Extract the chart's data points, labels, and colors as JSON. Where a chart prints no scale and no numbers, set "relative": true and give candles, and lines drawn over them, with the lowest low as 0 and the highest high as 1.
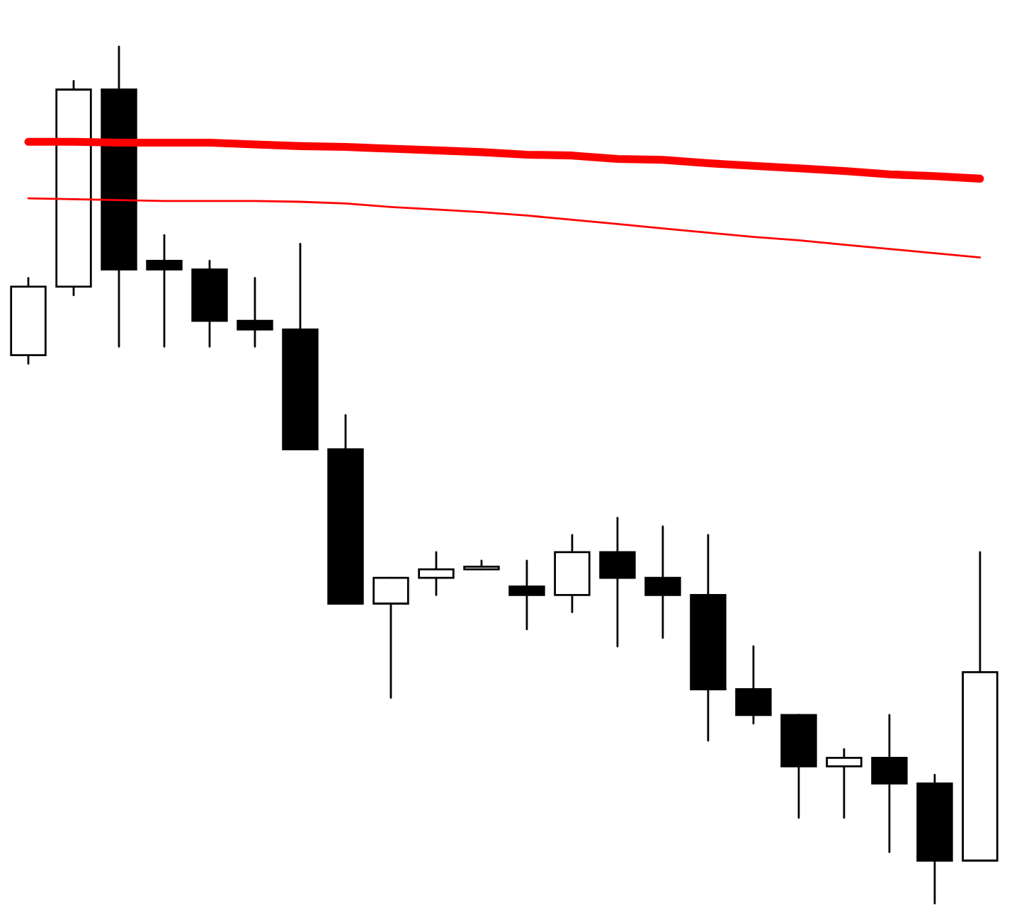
{
  "chart_data": {
    "type": "candlestick",
    "relative": true,
    "categories": [
      null,
      null,
      null,
      null,
      null,
      null,
      null,
      null,
      null,
      null,
      null,
      null,
      null,
      null,
      null,
      null,
      null,
      null,
      null,
      null,
      null,
      null
    ],
    "ohlc": [
      [
        0.64,
        0.73,
        0.63,
        0.72
      ],
      [
        0.72,
        0.96,
        0.71,
        0.95
      ],
      [
        0.95,
        1.0,
        0.65,
        0.74
      ],
      [
        0.75,
        0.78,
        0.65,
        0.74
      ],
      [
        0.74,
        0.75,
        0.65,
        0.68
      ],
      [
        0.68,
        0.73,
        0.65,
        0.67
      ],
      [
        0.67,
        0.77,
        0.53,
        0.53
      ],
      [
        0.53,
        0.57,
        0.35,
        0.35
      ],
      [
        0.35,
        0.38,
        0.24,
        0.38
      ],
      [
        0.38,
        0.41,
        0.36,
        0.39
      ],
      [
        0.39,
        0.4,
        0.39,
        0.39
      ],
      [
        0.37,
        0.4,
        0.32,
        0.36
      ],
      [
        0.36,
        0.43,
        0.34,
        0.41
      ],
      [
        0.41,
        0.45,
        0.3,
        0.38
      ],
      [
        0.38,
        0.44,
        0.31,
        0.36
      ],
      [
        0.36,
        0.43,
        0.19,
        0.25
      ],
      [
        0.25,
        0.3,
        0.21,
        0.22
      ],
      [
        0.22,
        0.22,
        0.1,
        0.16
      ],
      [
        0.16,
        0.18,
        0.1,
        0.17
      ],
      [
        0.17,
        0.22,
        0.06,
        0.14
      ],
      [
        0.14,
        0.15,
        0.0,
        0.05
      ],
      [
        0.05,
        0.41,
        0.05,
        0.27
      ]
    ],
    "series": [
      {
        "type": "line",
        "color": "#ff0000",
        "values": [
          0.889,
          0.889,
          0.888,
          0.888,
          0.888,
          0.886,
          0.884,
          0.883,
          0.881,
          0.879,
          0.877,
          0.874,
          0.873,
          0.869,
          0.868,
          0.864,
          0.861,
          0.858,
          0.855,
          0.851,
          0.849,
          0.846
        ]
      },
      {
        "type": "line",
        "color": "#ff0000",
        "values": [
          0.823,
          0.822,
          0.821,
          0.82,
          0.82,
          0.82,
          0.819,
          0.817,
          0.813,
          0.81,
          0.807,
          0.803,
          0.798,
          0.793,
          0.788,
          0.783,
          0.778,
          0.774,
          0.769,
          0.764,
          0.759,
          0.754
        ]
      }
    ]
  }
}
